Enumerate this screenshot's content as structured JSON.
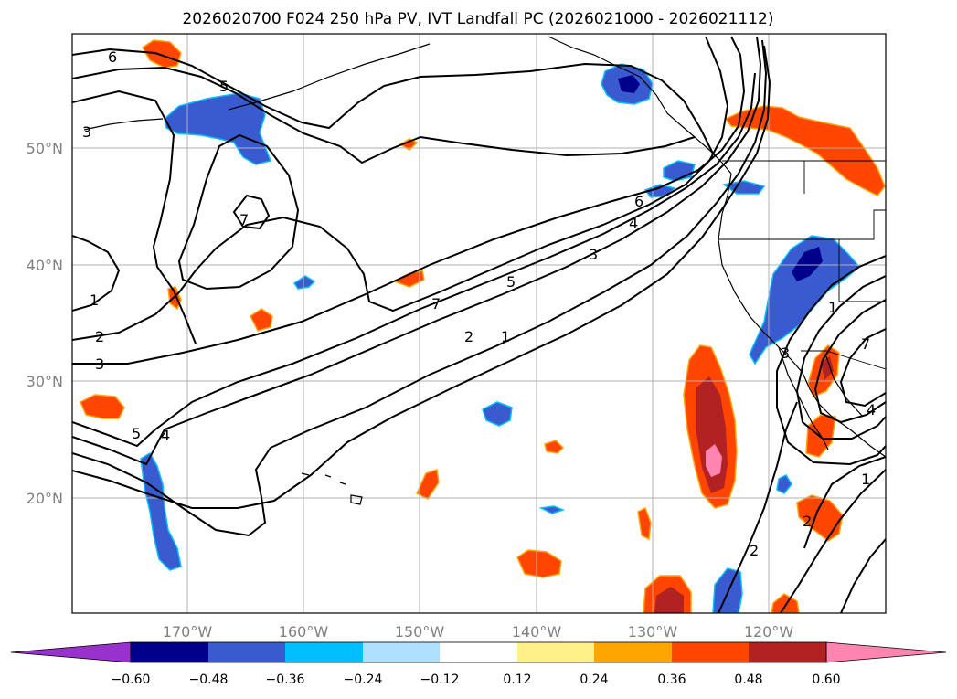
{
  "title": "2026020700 F024 250 hPa PV, IVT Landfall PC (2026021000 - 2026021112)",
  "map": {
    "lon_ticks": [
      "170°W",
      "160°W",
      "150°W",
      "140°W",
      "130°W",
      "120°W"
    ],
    "lat_ticks": [
      "50°N",
      "40°N",
      "30°N",
      "20°N"
    ]
  },
  "contour_labels": [
    "6",
    "5",
    "3",
    "7",
    "6",
    "4",
    "3",
    "5",
    "7",
    "2",
    "1",
    "1",
    "2",
    "3",
    "5",
    "4",
    "3",
    "7",
    "4",
    "1",
    "2",
    "2",
    "1"
  ],
  "colorbar": {
    "tick_labels": [
      "−0.60",
      "−0.48",
      "−0.36",
      "−0.24",
      "−0.12",
      "0.12",
      "0.24",
      "0.36",
      "0.48",
      "0.60"
    ],
    "colors": {
      "under": "#9932cc",
      "bin_1": "#00008b",
      "bin_2": "#3a5bd0",
      "bin_3": "#00bfff",
      "bin_4": "#b0e0ff",
      "bin_5": "#ffffff",
      "bin_6": "#fff08a",
      "bin_7": "#ffa500",
      "bin_8": "#ff4500",
      "bin_9": "#b22222",
      "over": "#ff85b0"
    }
  }
}
